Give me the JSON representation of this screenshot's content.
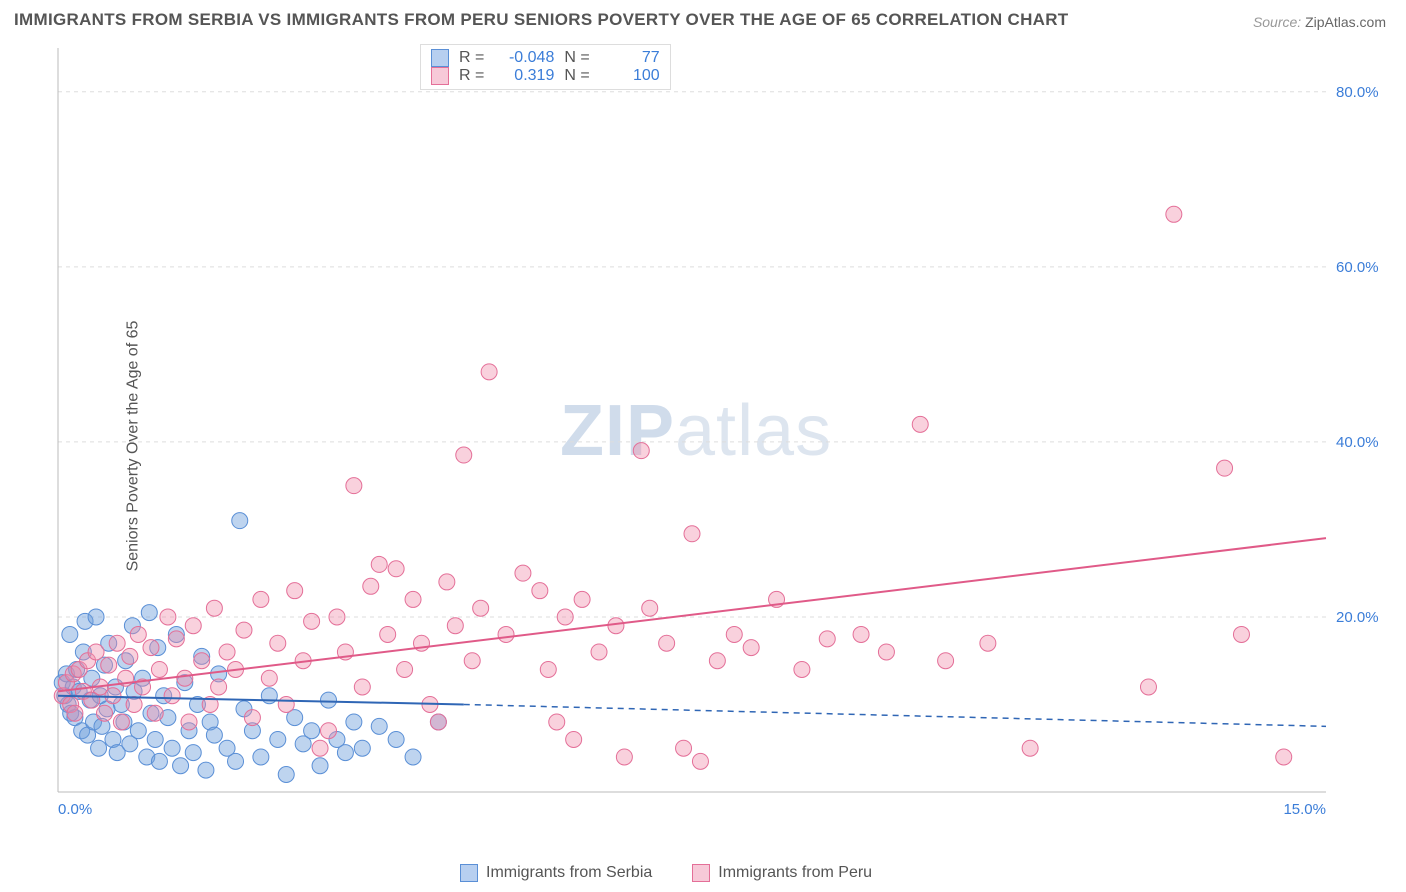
{
  "title": "IMMIGRANTS FROM SERBIA VS IMMIGRANTS FROM PERU SENIORS POVERTY OVER THE AGE OF 65 CORRELATION CHART",
  "source": {
    "label": "Source:",
    "value": "ZipAtlas.com"
  },
  "y_axis_label": "Seniors Poverty Over the Age of 65",
  "watermark": {
    "prefix": "ZIP",
    "suffix": "atlas"
  },
  "chart": {
    "type": "scatter",
    "background_color": "#ffffff",
    "grid_color": "#dddddd",
    "grid_dash": "4,4",
    "axis_color": "#bbbbbb",
    "tick_text_color": "#3b7dd8",
    "xlim": [
      0,
      15
    ],
    "ylim": [
      0,
      85
    ],
    "x_ticks": [
      {
        "value": 0.0,
        "label": "0.0%"
      },
      {
        "value": 15.0,
        "label": "15.0%"
      }
    ],
    "y_ticks": [
      {
        "value": 20.0,
        "label": "20.0%"
      },
      {
        "value": 40.0,
        "label": "40.0%"
      },
      {
        "value": 60.0,
        "label": "60.0%"
      },
      {
        "value": 80.0,
        "label": "80.0%"
      }
    ],
    "marker_radius": 8,
    "marker_opacity": 0.55,
    "series": [
      {
        "name": "Immigrants from Serbia",
        "color_fill": "rgba(110,160,220,0.45)",
        "color_stroke": "#5a8fd6",
        "swatch_fill": "#b7cff0",
        "swatch_stroke": "#5a8fd6",
        "R": "-0.048",
        "N": "77",
        "regression": {
          "x1": 0.0,
          "y1": 11.0,
          "x_solid_end": 4.8,
          "y_solid_end": 10.0,
          "x2": 15.0,
          "y2": 7.5,
          "dash": "6,5",
          "line_width": 2,
          "color": "#2f66b5"
        },
        "points": [
          [
            0.05,
            12.5
          ],
          [
            0.08,
            11.0
          ],
          [
            0.1,
            13.5
          ],
          [
            0.12,
            10.0
          ],
          [
            0.14,
            18.0
          ],
          [
            0.15,
            9.0
          ],
          [
            0.18,
            12.0
          ],
          [
            0.2,
            8.5
          ],
          [
            0.22,
            14.0
          ],
          [
            0.25,
            11.5
          ],
          [
            0.28,
            7.0
          ],
          [
            0.3,
            16.0
          ],
          [
            0.32,
            19.5
          ],
          [
            0.35,
            6.5
          ],
          [
            0.38,
            10.5
          ],
          [
            0.4,
            13.0
          ],
          [
            0.42,
            8.0
          ],
          [
            0.45,
            20.0
          ],
          [
            0.48,
            5.0
          ],
          [
            0.5,
            11.0
          ],
          [
            0.52,
            7.5
          ],
          [
            0.55,
            14.5
          ],
          [
            0.58,
            9.5
          ],
          [
            0.6,
            17.0
          ],
          [
            0.65,
            6.0
          ],
          [
            0.68,
            12.0
          ],
          [
            0.7,
            4.5
          ],
          [
            0.75,
            10.0
          ],
          [
            0.78,
            8.0
          ],
          [
            0.8,
            15.0
          ],
          [
            0.85,
            5.5
          ],
          [
            0.88,
            19.0
          ],
          [
            0.9,
            11.5
          ],
          [
            0.95,
            7.0
          ],
          [
            1.0,
            13.0
          ],
          [
            1.05,
            4.0
          ],
          [
            1.08,
            20.5
          ],
          [
            1.1,
            9.0
          ],
          [
            1.15,
            6.0
          ],
          [
            1.18,
            16.5
          ],
          [
            1.2,
            3.5
          ],
          [
            1.25,
            11.0
          ],
          [
            1.3,
            8.5
          ],
          [
            1.35,
            5.0
          ],
          [
            1.4,
            18.0
          ],
          [
            1.45,
            3.0
          ],
          [
            1.5,
            12.5
          ],
          [
            1.55,
            7.0
          ],
          [
            1.6,
            4.5
          ],
          [
            1.65,
            10.0
          ],
          [
            1.7,
            15.5
          ],
          [
            1.75,
            2.5
          ],
          [
            1.8,
            8.0
          ],
          [
            1.85,
            6.5
          ],
          [
            1.9,
            13.5
          ],
          [
            2.0,
            5.0
          ],
          [
            2.1,
            3.5
          ],
          [
            2.15,
            31.0
          ],
          [
            2.2,
            9.5
          ],
          [
            2.3,
            7.0
          ],
          [
            2.4,
            4.0
          ],
          [
            2.5,
            11.0
          ],
          [
            2.6,
            6.0
          ],
          [
            2.7,
            2.0
          ],
          [
            2.8,
            8.5
          ],
          [
            2.9,
            5.5
          ],
          [
            3.0,
            7.0
          ],
          [
            3.1,
            3.0
          ],
          [
            3.2,
            10.5
          ],
          [
            3.3,
            6.0
          ],
          [
            3.4,
            4.5
          ],
          [
            3.5,
            8.0
          ],
          [
            3.6,
            5.0
          ],
          [
            3.8,
            7.5
          ],
          [
            4.0,
            6.0
          ],
          [
            4.2,
            4.0
          ],
          [
            4.5,
            8.0
          ]
        ]
      },
      {
        "name": "Immigrants from Peru",
        "color_fill": "rgba(240,140,170,0.40)",
        "color_stroke": "#e46f98",
        "swatch_fill": "#f7c9d8",
        "swatch_stroke": "#e46f98",
        "R": "0.319",
        "N": "100",
        "regression": {
          "x1": 0.0,
          "y1": 11.5,
          "x_solid_end": 15.0,
          "y_solid_end": 29.0,
          "x2": 15.0,
          "y2": 29.0,
          "dash": "",
          "line_width": 2,
          "color": "#e05a88"
        },
        "points": [
          [
            0.05,
            11.0
          ],
          [
            0.1,
            12.5
          ],
          [
            0.15,
            10.0
          ],
          [
            0.18,
            13.5
          ],
          [
            0.2,
            9.0
          ],
          [
            0.25,
            14.0
          ],
          [
            0.3,
            11.5
          ],
          [
            0.35,
            15.0
          ],
          [
            0.4,
            10.5
          ],
          [
            0.45,
            16.0
          ],
          [
            0.5,
            12.0
          ],
          [
            0.55,
            9.0
          ],
          [
            0.6,
            14.5
          ],
          [
            0.65,
            11.0
          ],
          [
            0.7,
            17.0
          ],
          [
            0.75,
            8.0
          ],
          [
            0.8,
            13.0
          ],
          [
            0.85,
            15.5
          ],
          [
            0.9,
            10.0
          ],
          [
            0.95,
            18.0
          ],
          [
            1.0,
            12.0
          ],
          [
            1.1,
            16.5
          ],
          [
            1.15,
            9.0
          ],
          [
            1.2,
            14.0
          ],
          [
            1.3,
            20.0
          ],
          [
            1.35,
            11.0
          ],
          [
            1.4,
            17.5
          ],
          [
            1.5,
            13.0
          ],
          [
            1.55,
            8.0
          ],
          [
            1.6,
            19.0
          ],
          [
            1.7,
            15.0
          ],
          [
            1.8,
            10.0
          ],
          [
            1.85,
            21.0
          ],
          [
            1.9,
            12.0
          ],
          [
            2.0,
            16.0
          ],
          [
            2.1,
            14.0
          ],
          [
            2.2,
            18.5
          ],
          [
            2.3,
            8.5
          ],
          [
            2.4,
            22.0
          ],
          [
            2.5,
            13.0
          ],
          [
            2.6,
            17.0
          ],
          [
            2.7,
            10.0
          ],
          [
            2.8,
            23.0
          ],
          [
            2.9,
            15.0
          ],
          [
            3.0,
            19.5
          ],
          [
            3.1,
            5.0
          ],
          [
            3.2,
            7.0
          ],
          [
            3.3,
            20.0
          ],
          [
            3.4,
            16.0
          ],
          [
            3.5,
            35.0
          ],
          [
            3.6,
            12.0
          ],
          [
            3.7,
            23.5
          ],
          [
            3.8,
            26.0
          ],
          [
            3.9,
            18.0
          ],
          [
            4.0,
            25.5
          ],
          [
            4.1,
            14.0
          ],
          [
            4.2,
            22.0
          ],
          [
            4.3,
            17.0
          ],
          [
            4.4,
            10.0
          ],
          [
            4.5,
            8.0
          ],
          [
            4.6,
            24.0
          ],
          [
            4.7,
            19.0
          ],
          [
            4.8,
            38.5
          ],
          [
            4.9,
            15.0
          ],
          [
            5.0,
            21.0
          ],
          [
            5.1,
            48.0
          ],
          [
            5.3,
            18.0
          ],
          [
            5.5,
            25.0
          ],
          [
            5.7,
            23.0
          ],
          [
            5.8,
            14.0
          ],
          [
            5.9,
            8.0
          ],
          [
            6.0,
            20.0
          ],
          [
            6.1,
            6.0
          ],
          [
            6.2,
            22.0
          ],
          [
            6.4,
            16.0
          ],
          [
            6.6,
            19.0
          ],
          [
            6.7,
            4.0
          ],
          [
            6.9,
            39.0
          ],
          [
            7.0,
            21.0
          ],
          [
            7.2,
            17.0
          ],
          [
            7.4,
            5.0
          ],
          [
            7.5,
            29.5
          ],
          [
            7.6,
            3.5
          ],
          [
            7.8,
            15.0
          ],
          [
            8.0,
            18.0
          ],
          [
            8.2,
            16.5
          ],
          [
            8.5,
            22.0
          ],
          [
            8.8,
            14.0
          ],
          [
            9.1,
            17.5
          ],
          [
            9.5,
            18.0
          ],
          [
            9.8,
            16.0
          ],
          [
            10.2,
            42.0
          ],
          [
            10.5,
            15.0
          ],
          [
            11.0,
            17.0
          ],
          [
            11.5,
            5.0
          ],
          [
            12.9,
            12.0
          ],
          [
            13.2,
            66.0
          ],
          [
            13.8,
            37.0
          ],
          [
            14.0,
            18.0
          ],
          [
            14.5,
            4.0
          ]
        ]
      }
    ]
  },
  "legend_top": {
    "labels": {
      "R": "R =",
      "N": "N ="
    }
  },
  "legend_bottom": [
    {
      "series_index": 0
    },
    {
      "series_index": 1
    }
  ]
}
